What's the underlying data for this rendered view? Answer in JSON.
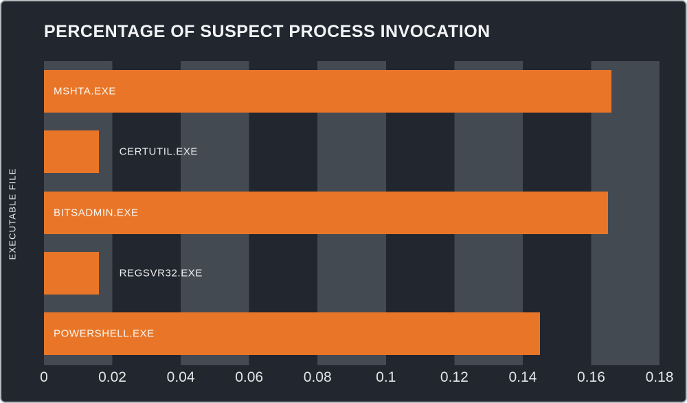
{
  "chart_data": {
    "type": "bar",
    "orientation": "horizontal",
    "title": "PERCENTAGE OF SUSPECT PROCESS INVOCATION",
    "xlabel": "",
    "ylabel": "EXECUTABLE FILE",
    "categories": [
      "MSHTA.EXE",
      "CERTUTIL.EXE",
      "BITSADMIN.EXE",
      "REGSVR32.EXE",
      "POWERSHELL.EXE"
    ],
    "values": [
      0.166,
      0.016,
      0.165,
      0.016,
      0.145
    ],
    "xlim": [
      0,
      0.18
    ],
    "x_ticks": [
      "0",
      "0.02",
      "0.04",
      "0.06",
      "0.08",
      "0.1",
      "0.12",
      "0.14",
      "0.16",
      "0.18"
    ],
    "grid": "alternating-vertical-stripes",
    "legend": "none",
    "bar_label_placement": [
      "inside",
      "outside",
      "inside",
      "outside",
      "inside"
    ]
  },
  "colors": {
    "background": "#22262e",
    "stripe": "#444a52",
    "bar": "#e97628",
    "title_text": "#f2f3f5",
    "tick_text": "#e3e5e7",
    "axis_label_text": "#e8e9eb",
    "bar_label_inside": "#fbf7f2",
    "bar_label_outside": "#edeef0",
    "frame_border": "#b6babf"
  }
}
